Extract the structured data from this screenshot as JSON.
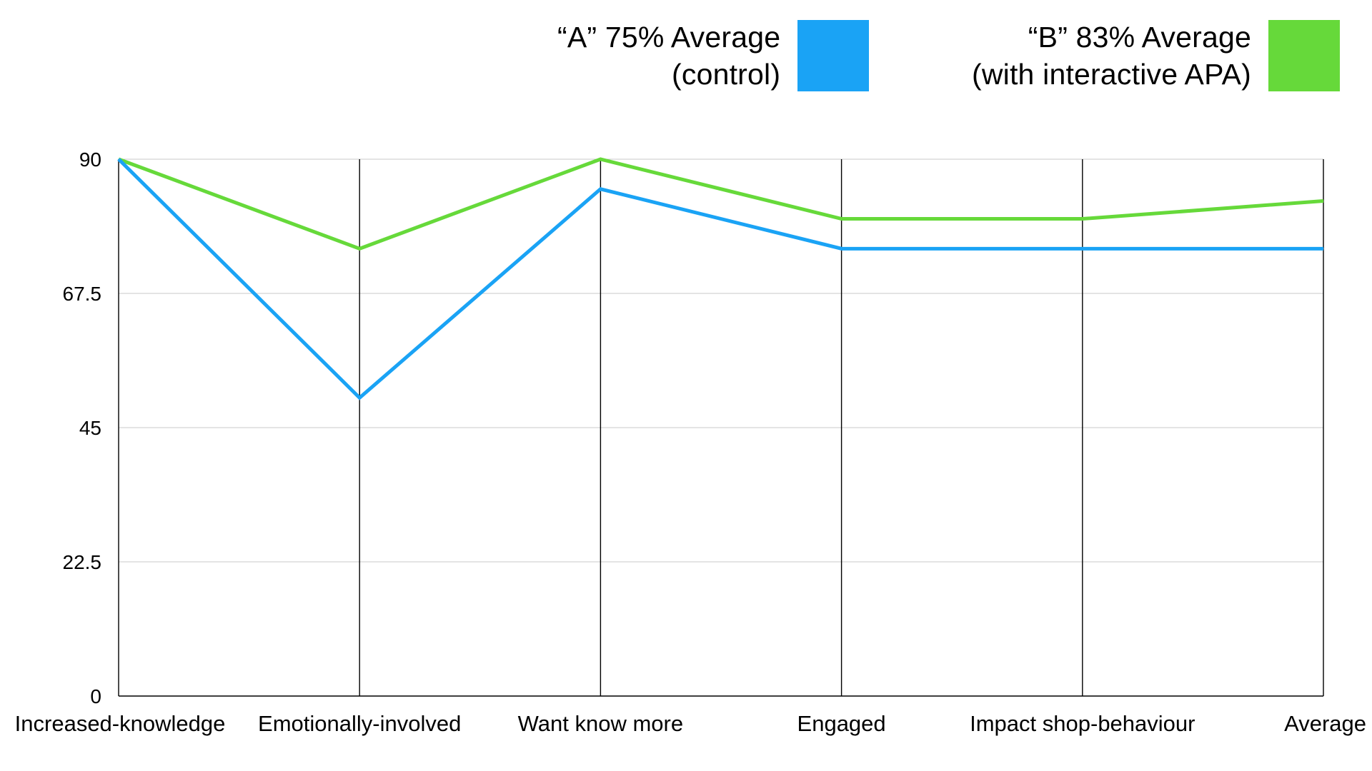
{
  "chart_data": {
    "type": "line",
    "categories": [
      "Increased-knowledge",
      "Emotionally-involved",
      "Want know more",
      "Engaged",
      "Impact shop-behaviour",
      "Average"
    ],
    "ylim": [
      0,
      90
    ],
    "yticks": [
      "0",
      "22.5",
      "45",
      "67.5",
      "90"
    ],
    "grid": true,
    "legend_position": "top-right",
    "series": [
      {
        "name": "“A” 75% Average (control)",
        "legend_lines": [
          "“A” 75% Average",
          "(control)"
        ],
        "color": "#1aa3f5",
        "values": [
          90,
          50,
          85,
          75,
          75,
          75
        ]
      },
      {
        "name": "“B” 83% Average (with interactive APA)",
        "legend_lines": [
          "“B” 83% Average",
          "(with interactive APA)"
        ],
        "color": "#66d93a",
        "values": [
          90,
          75,
          90,
          80,
          80,
          83
        ]
      }
    ]
  }
}
